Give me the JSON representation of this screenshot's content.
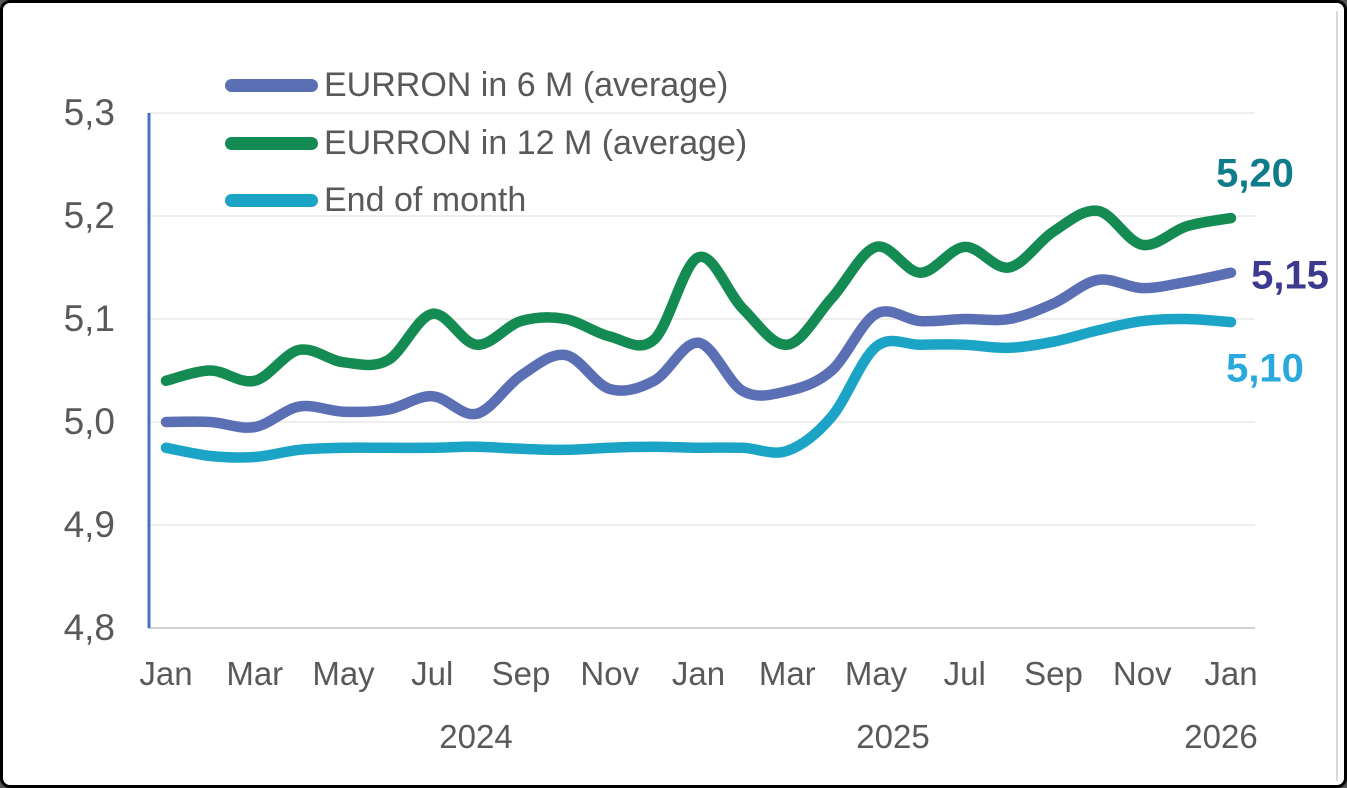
{
  "legend": {
    "items": [
      {
        "label": "EURRON in 6 M (average)"
      },
      {
        "label": "EURRON in 12 M (average)"
      },
      {
        "label": "End of month"
      }
    ]
  },
  "colors": {
    "axis_line_blue": "#4472c4",
    "gridline": "#e9e9e9",
    "baseline": "#d2d2d2",
    "axis_text": "#595959"
  },
  "chart_data": {
    "type": "line",
    "title": "",
    "xlabel": "",
    "ylabel": "",
    "grid": true,
    "smooth_lines": true,
    "legend_position": "top-left",
    "categories": [
      "Jan 2024",
      "Feb 2024",
      "Mar 2024",
      "Apr 2024",
      "May 2024",
      "Jun 2024",
      "Jul 2024",
      "Aug 2024",
      "Sep 2024",
      "Oct 2024",
      "Nov 2024",
      "Dec 2024",
      "Jan 2025",
      "Feb 2025",
      "Mar 2025",
      "Apr 2025",
      "May 2025",
      "Jun 2025",
      "Jul 2025",
      "Aug 2025",
      "Sep 2025",
      "Oct 2025",
      "Nov 2025",
      "Dec 2025",
      "Jan 2026"
    ],
    "series": [
      {
        "name": "EURRON in 6 M (average)",
        "color": "#5b6fb5",
        "end_label": "5,15",
        "end_label_color": "#3b3a8f",
        "values": [
          5.0,
          5.0,
          4.995,
          5.015,
          5.01,
          5.012,
          5.025,
          5.008,
          5.045,
          5.065,
          5.032,
          5.04,
          5.077,
          5.03,
          5.03,
          5.05,
          5.105,
          5.098,
          5.1,
          5.1,
          5.115,
          5.138,
          5.13,
          5.136,
          5.145
        ]
      },
      {
        "name": "EURRON in 12 M (average)",
        "color": "#148b52",
        "end_label": "5,20",
        "end_label_color": "#0e7c8a",
        "values": [
          5.04,
          5.05,
          5.04,
          5.07,
          5.058,
          5.06,
          5.105,
          5.075,
          5.098,
          5.1,
          5.083,
          5.08,
          5.16,
          5.11,
          5.075,
          5.12,
          5.17,
          5.145,
          5.17,
          5.15,
          5.185,
          5.205,
          5.172,
          5.19,
          5.198
        ]
      },
      {
        "name": "End of month",
        "color": "#1ca4c7",
        "end_label": "5,10",
        "end_label_color": "#29a9dc",
        "values": [
          4.975,
          4.967,
          4.966,
          4.973,
          4.975,
          4.975,
          4.975,
          4.976,
          4.974,
          4.973,
          4.975,
          4.976,
          4.975,
          4.975,
          4.972,
          5.005,
          5.073,
          5.075,
          5.075,
          5.072,
          5.078,
          5.089,
          5.098,
          5.1,
          5.097
        ]
      }
    ],
    "y_axis": {
      "min": 4.8,
      "max": 5.3,
      "ticks": [
        5.3,
        5.2,
        5.1,
        5.0,
        4.9,
        4.8
      ],
      "tick_labels": [
        "5,3",
        "5,2",
        "5,1",
        "5,0",
        "4,9",
        "4,8"
      ]
    },
    "x_axis": {
      "tick_labels": [
        "Jan",
        "Mar",
        "May",
        "Jul",
        "Sep",
        "Nov",
        "Jan",
        "Mar",
        "May",
        "Jul",
        "Sep",
        "Nov",
        "Jan"
      ],
      "year_labels": [
        "2024",
        "2025",
        "2026"
      ]
    }
  }
}
